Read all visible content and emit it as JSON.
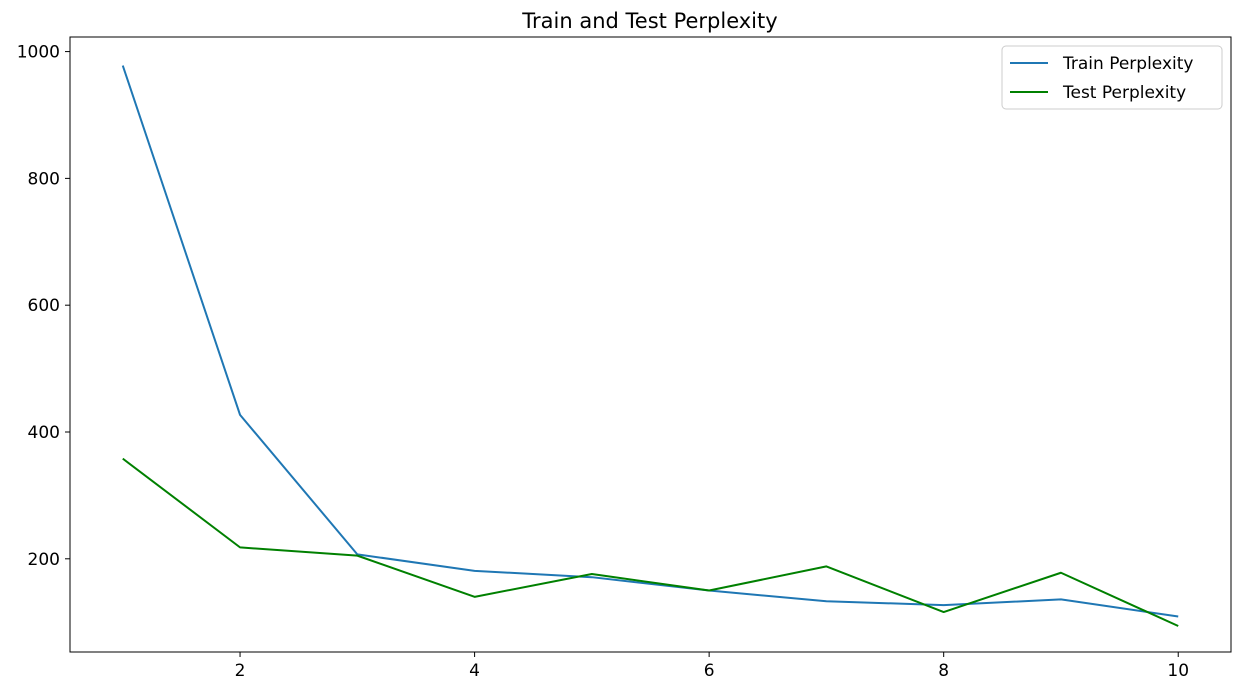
{
  "chart_data": {
    "type": "line",
    "title": "Train and Test Perplexity",
    "xlabel": "",
    "ylabel": "",
    "x": [
      1,
      2,
      3,
      4,
      5,
      6,
      7,
      8,
      9,
      10
    ],
    "xlim": [
      0.55,
      10.45
    ],
    "ylim": [
      53,
      1023
    ],
    "x_ticks": [
      2,
      4,
      6,
      8,
      10
    ],
    "y_ticks": [
      200,
      400,
      600,
      800,
      1000
    ],
    "grid": false,
    "legend_position": "top-right",
    "series": [
      {
        "name": "Train Perplexity",
        "color": "#1f77b4",
        "values": [
          978,
          427,
          207,
          181,
          171,
          150,
          133,
          127,
          136,
          109
        ]
      },
      {
        "name": "Test Perplexity",
        "color": "#008000",
        "values": [
          358,
          218,
          205,
          140,
          176,
          150,
          188,
          116,
          178,
          94
        ]
      }
    ]
  }
}
